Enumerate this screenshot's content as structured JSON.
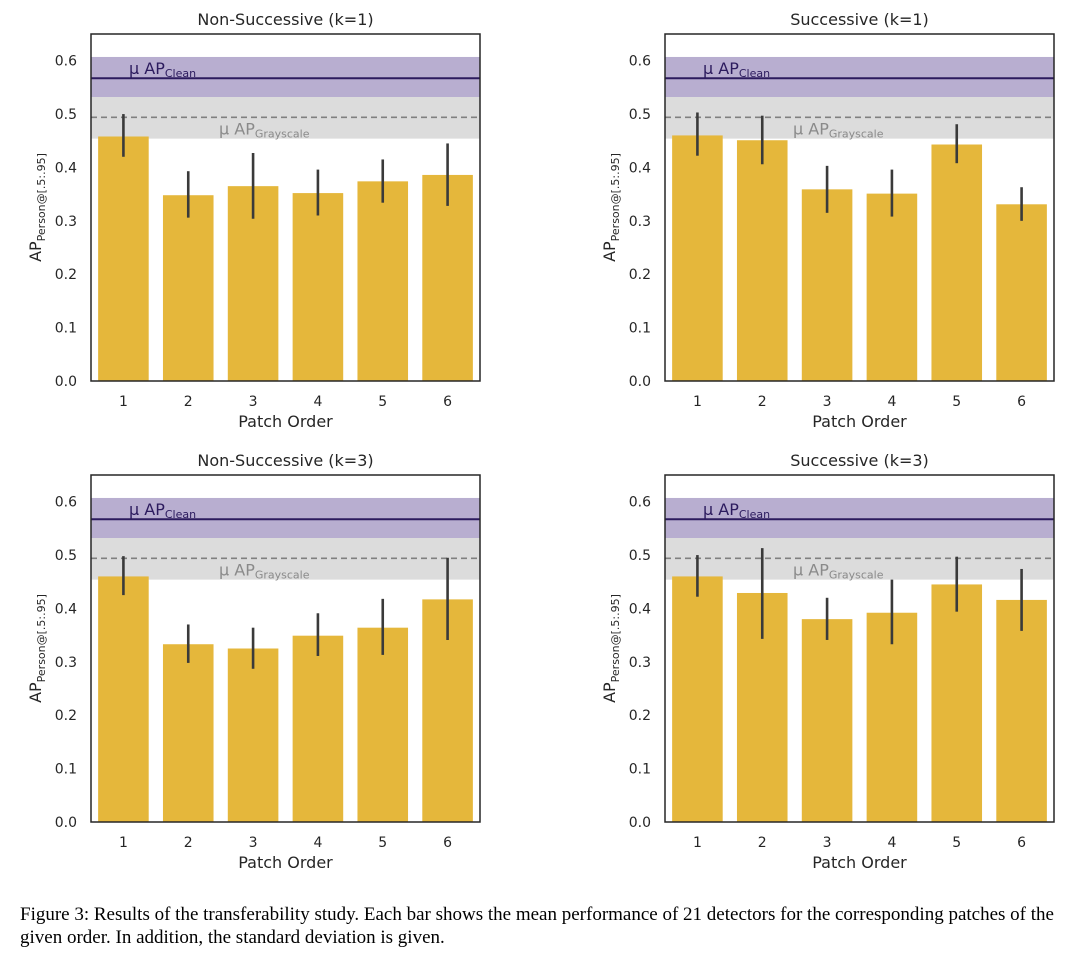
{
  "caption": "Figure 3: Results of the transferability study. Each bar shows the mean performance of 21 detectors for the corresponding patches of the given order. In addition, the standard deviation is given.",
  "colors": {
    "bar": "#E5B73B",
    "errorbar": "#3a3a3a",
    "clean_line": "#2c1b5e",
    "clean_band": "#b8aed0",
    "grayscale_line": "#808080",
    "grayscale_band": "#dcdcdc",
    "grayscale_text": "#8a8a8a"
  },
  "chart_data": [
    {
      "type": "bar",
      "title": "Non-Successive (k=1)",
      "xlabel": "Patch Order",
      "ylabel": "AP",
      "ylabel_sub": "Person@[.5:.95]",
      "categories": [
        "1",
        "2",
        "3",
        "4",
        "5",
        "6"
      ],
      "values": [
        0.458,
        0.348,
        0.365,
        0.352,
        0.374,
        0.386
      ],
      "error_low": [
        0.42,
        0.306,
        0.304,
        0.31,
        0.334,
        0.328
      ],
      "error_high": [
        0.5,
        0.393,
        0.427,
        0.396,
        0.415,
        0.445
      ],
      "ylim": [
        0,
        0.65
      ],
      "yticks": [
        "0.0",
        "0.1",
        "0.2",
        "0.3",
        "0.4",
        "0.5",
        "0.6"
      ],
      "reference_lines": [
        {
          "label": "μ AP",
          "sub": "Clean",
          "value": 0.567,
          "band": [
            0.53,
            0.607
          ],
          "style": "solid"
        },
        {
          "label": "μ AP",
          "sub": "Grayscale",
          "value": 0.494,
          "band": [
            0.454,
            0.532
          ],
          "style": "dashed"
        }
      ]
    },
    {
      "type": "bar",
      "title": "Successive (k=1)",
      "xlabel": "Patch Order",
      "ylabel": "AP",
      "ylabel_sub": "Person@[.5:.95]",
      "categories": [
        "1",
        "2",
        "3",
        "4",
        "5",
        "6"
      ],
      "values": [
        0.46,
        0.451,
        0.359,
        0.351,
        0.443,
        0.331
      ],
      "error_low": [
        0.422,
        0.406,
        0.315,
        0.308,
        0.408,
        0.3
      ],
      "error_high": [
        0.503,
        0.497,
        0.403,
        0.396,
        0.481,
        0.363
      ],
      "ylim": [
        0,
        0.65
      ],
      "yticks": [
        "0.0",
        "0.1",
        "0.2",
        "0.3",
        "0.4",
        "0.5",
        "0.6"
      ],
      "reference_lines": [
        {
          "label": "μ AP",
          "sub": "Clean",
          "value": 0.567,
          "band": [
            0.53,
            0.607
          ],
          "style": "solid"
        },
        {
          "label": "μ AP",
          "sub": "Grayscale",
          "value": 0.494,
          "band": [
            0.454,
            0.532
          ],
          "style": "dashed"
        }
      ]
    },
    {
      "type": "bar",
      "title": "Non-Successive (k=3)",
      "xlabel": "Patch Order",
      "ylabel": "AP",
      "ylabel_sub": "Person@[.5:.95]",
      "categories": [
        "1",
        "2",
        "3",
        "4",
        "5",
        "6"
      ],
      "values": [
        0.46,
        0.333,
        0.325,
        0.349,
        0.364,
        0.417
      ],
      "error_low": [
        0.425,
        0.298,
        0.287,
        0.311,
        0.313,
        0.341
      ],
      "error_high": [
        0.498,
        0.37,
        0.364,
        0.391,
        0.418,
        0.495
      ],
      "ylim": [
        0,
        0.65
      ],
      "yticks": [
        "0.0",
        "0.1",
        "0.2",
        "0.3",
        "0.4",
        "0.5",
        "0.6"
      ],
      "reference_lines": [
        {
          "label": "μ AP",
          "sub": "Clean",
          "value": 0.567,
          "band": [
            0.53,
            0.607
          ],
          "style": "solid"
        },
        {
          "label": "μ AP",
          "sub": "Grayscale",
          "value": 0.494,
          "band": [
            0.454,
            0.532
          ],
          "style": "dashed"
        }
      ]
    },
    {
      "type": "bar",
      "title": "Successive (k=3)",
      "xlabel": "Patch Order",
      "ylabel": "AP",
      "ylabel_sub": "Person@[.5:.95]",
      "categories": [
        "1",
        "2",
        "3",
        "4",
        "5",
        "6"
      ],
      "values": [
        0.46,
        0.429,
        0.38,
        0.392,
        0.445,
        0.416
      ],
      "error_low": [
        0.422,
        0.343,
        0.341,
        0.333,
        0.394,
        0.358
      ],
      "error_high": [
        0.5,
        0.513,
        0.42,
        0.454,
        0.497,
        0.474
      ],
      "ylim": [
        0,
        0.65
      ],
      "yticks": [
        "0.0",
        "0.1",
        "0.2",
        "0.3",
        "0.4",
        "0.5",
        "0.6"
      ],
      "reference_lines": [
        {
          "label": "μ AP",
          "sub": "Clean",
          "value": 0.567,
          "band": [
            0.53,
            0.607
          ],
          "style": "solid"
        },
        {
          "label": "μ AP",
          "sub": "Grayscale",
          "value": 0.494,
          "band": [
            0.454,
            0.532
          ],
          "style": "dashed"
        }
      ]
    }
  ]
}
